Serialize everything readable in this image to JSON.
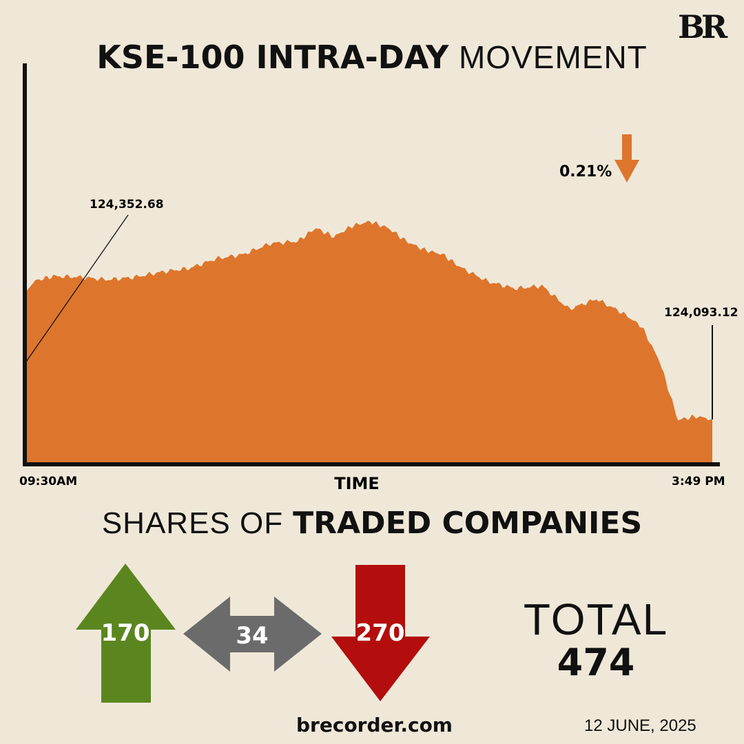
{
  "brand": {
    "logo_text": "BR",
    "website": "brecorder.com",
    "date": "12 JUNE, 2025"
  },
  "title": {
    "bold": "KSE-100 INTRA-DAY",
    "light": "MOVEMENT"
  },
  "chart_data": {
    "type": "area",
    "title": "KSE-100 INTRA-DAY MOVEMENT",
    "xlabel": "TIME",
    "x_start_label": "09:30AM",
    "x_end_label": "3:49 PM",
    "open_label": "124,352.68",
    "close_label": "124,093.12",
    "change_label": "0.21%",
    "change_direction": "down",
    "open_value": 124352.68,
    "close_value": 124093.12,
    "x": [
      "09:30",
      "09:35",
      "09:45",
      "10:00",
      "10:15",
      "10:30",
      "10:45",
      "11:00",
      "11:15",
      "11:30",
      "11:45",
      "12:00",
      "12:10",
      "12:20",
      "12:30",
      "12:40",
      "12:50",
      "13:00",
      "13:10",
      "13:20",
      "13:30",
      "13:45",
      "14:00",
      "14:15",
      "14:30",
      "14:45",
      "15:00",
      "15:10",
      "15:20",
      "15:30",
      "15:40",
      "15:49"
    ],
    "values": [
      124385,
      124410,
      124420,
      124418,
      124412,
      124418,
      124430,
      124438,
      124460,
      124470,
      124495,
      124500,
      124530,
      124510,
      124535,
      124545,
      124530,
      124500,
      124480,
      124470,
      124440,
      124408,
      124392,
      124398,
      124345,
      124368,
      124335,
      124305,
      124225,
      124092,
      124100,
      124093
    ],
    "color": "#de752c",
    "grid": false,
    "legend": "none"
  },
  "shares": {
    "title_light": "SHARES OF",
    "title_bold": "TRADED COMPANIES",
    "advancing": "170",
    "unchanged": "34",
    "declining": "270",
    "total_label": "TOTAL",
    "total_value": "474",
    "colors": {
      "up": "#5b861f",
      "flat": "#6b6b6b",
      "down": "#b30d0d",
      "change_arrow": "#de752c"
    }
  }
}
